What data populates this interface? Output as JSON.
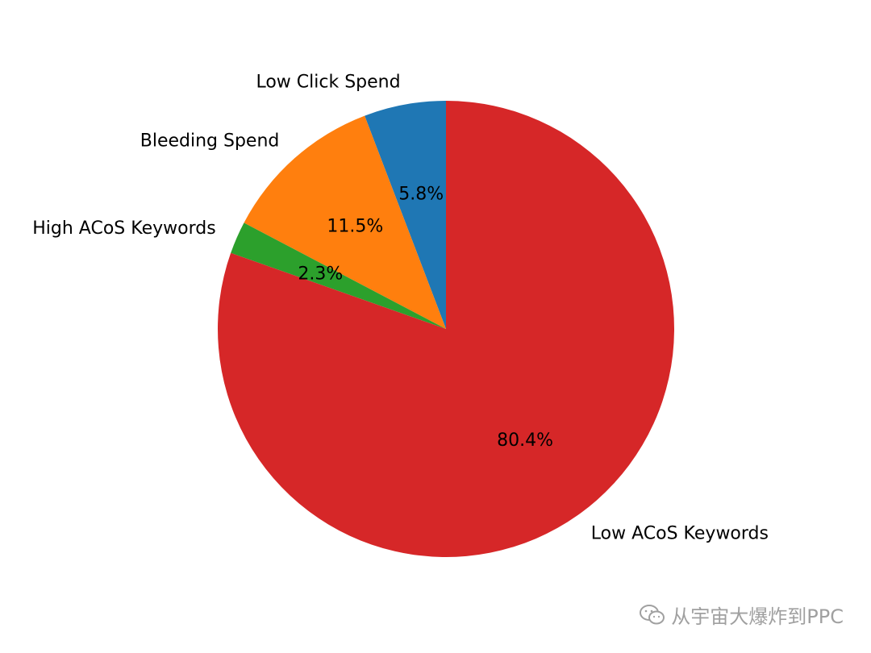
{
  "chart_data": {
    "type": "pie",
    "title": "",
    "start_angle": 90,
    "direction": "counterclockwise",
    "slices": [
      {
        "label": "Low Click Spend",
        "value": 5.8,
        "pct_label": "5.8%",
        "color": "#1f77b4"
      },
      {
        "label": "Bleeding Spend",
        "value": 11.5,
        "pct_label": "11.5%",
        "color": "#ff7f0e"
      },
      {
        "label": "High ACoS Keywords",
        "value": 2.3,
        "pct_label": "2.3%",
        "color": "#2ca02c"
      },
      {
        "label": "Low ACoS Keywords",
        "value": 80.4,
        "pct_label": "80.4%",
        "color": "#d62728"
      }
    ]
  },
  "watermark": {
    "text": "从宇宙大爆炸到PPC",
    "icon": "wechat-icon"
  }
}
